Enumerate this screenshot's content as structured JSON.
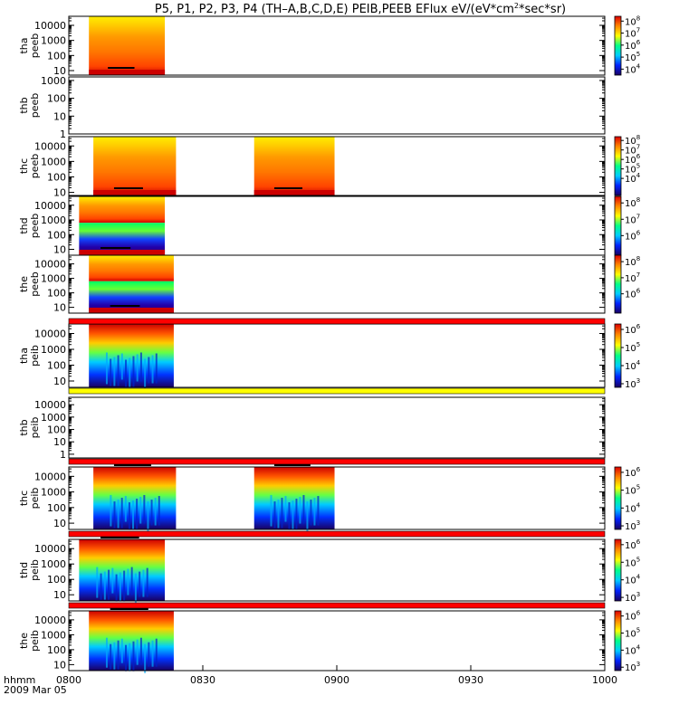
{
  "chart_data": {
    "type": "heatmap",
    "title": {
      "prefix": "P5, P1, P2, P3, P4 (TH–A,B,C,D,E) PEIB,PEEB EFlux eV/(eV*cm",
      "sup": "2",
      "suffix": "*sec*sr)"
    },
    "x_axis": {
      "label_line1": "hhmm",
      "label_line2": "2009 Mar 05",
      "range_minutes": [
        0,
        120
      ],
      "ticks": [
        {
          "label": "0800",
          "minute": 0
        },
        {
          "label": "0830",
          "minute": 30
        },
        {
          "label": "0900",
          "minute": 60
        },
        {
          "label": "0930",
          "minute": 90
        },
        {
          "label": "1000",
          "minute": 120
        }
      ]
    },
    "colormap": [
      "#1a0060",
      "#0022ff",
      "#00ccff",
      "#00ff88",
      "#ffff00",
      "#ff8800",
      "#dd0000"
    ],
    "panels": [
      {
        "probe": "tha",
        "instrument": "peeb",
        "y_ticks": [
          "10000",
          "1000",
          "100",
          "10"
        ],
        "yrange_log": [
          0.7,
          4.6
        ],
        "empty": false,
        "colorbar_ticks": [
          {
            "base": "10",
            "exp": "8",
            "v": 8
          },
          {
            "base": "10",
            "exp": "7",
            "v": 7
          },
          {
            "base": "10",
            "exp": "6",
            "v": 6
          },
          {
            "base": "10",
            "exp": "5",
            "v": 5
          },
          {
            "base": "10",
            "exp": "4",
            "v": 4
          }
        ],
        "colorbar_range": [
          3.5,
          8.4
        ],
        "intervals": [
          {
            "start": 4.5,
            "end": 21.5
          }
        ],
        "separator": null
      },
      {
        "probe": "thb",
        "instrument": "peeb",
        "y_ticks": [
          "1000",
          "100",
          "10",
          "1"
        ],
        "yrange_log": [
          0,
          3.2
        ],
        "empty": true,
        "colorbar_ticks": [],
        "colorbar_range": null,
        "intervals": [],
        "separator": null
      },
      {
        "probe": "thc",
        "instrument": "peeb",
        "y_ticks": [
          "10000",
          "1000",
          "100",
          "10"
        ],
        "yrange_log": [
          0.8,
          4.6
        ],
        "empty": false,
        "colorbar_ticks": [
          {
            "base": "10",
            "exp": "8",
            "v": 8
          },
          {
            "base": "10",
            "exp": "7",
            "v": 7
          },
          {
            "base": "10",
            "exp": "6",
            "v": 6
          },
          {
            "base": "10",
            "exp": "5",
            "v": 5
          },
          {
            "base": "10",
            "exp": "4",
            "v": 4
          }
        ],
        "colorbar_range": [
          2.2,
          8.4
        ],
        "intervals": [
          {
            "start": 5.5,
            "end": 24
          },
          {
            "start": 41.5,
            "end": 59.5
          }
        ],
        "separator": null
      },
      {
        "probe": "thd",
        "instrument": "peeb",
        "y_ticks": [
          "10000",
          "1000",
          "100",
          "10"
        ],
        "yrange_log": [
          0.6,
          4.6
        ],
        "empty": false,
        "colorbar_ticks": [
          {
            "base": "10",
            "exp": "8",
            "v": 8
          },
          {
            "base": "10",
            "exp": "7",
            "v": 7
          },
          {
            "base": "10",
            "exp": "6",
            "v": 6
          }
        ],
        "colorbar_range": [
          4.8,
          8.4
        ],
        "intervals": [
          {
            "start": 2.3,
            "end": 21.5
          }
        ],
        "separator": null
      },
      {
        "probe": "the",
        "instrument": "peeb",
        "y_ticks": [
          "10000",
          "1000",
          "100",
          "10"
        ],
        "yrange_log": [
          0.6,
          4.6
        ],
        "empty": false,
        "colorbar_ticks": [
          {
            "base": "10",
            "exp": "8",
            "v": 8
          },
          {
            "base": "10",
            "exp": "7",
            "v": 7
          },
          {
            "base": "10",
            "exp": "6",
            "v": 6
          }
        ],
        "colorbar_range": [
          4.8,
          8.4
        ],
        "intervals": [
          {
            "start": 4.5,
            "end": 23.5
          }
        ],
        "separator": "red"
      },
      {
        "probe": "tha",
        "instrument": "peib",
        "y_ticks": [
          "10000",
          "1000",
          "100",
          "10"
        ],
        "yrange_log": [
          0.6,
          4.6
        ],
        "empty": false,
        "colorbar_ticks": [
          {
            "base": "10",
            "exp": "6",
            "v": 6
          },
          {
            "base": "10",
            "exp": "5",
            "v": 5
          },
          {
            "base": "10",
            "exp": "4",
            "v": 4
          },
          {
            "base": "10",
            "exp": "3",
            "v": 3
          }
        ],
        "colorbar_range": [
          2.8,
          6.3
        ],
        "intervals": [
          {
            "start": 4.5,
            "end": 23.5
          }
        ],
        "separator": "yellow"
      },
      {
        "probe": "thb",
        "instrument": "peib",
        "y_ticks": [
          "10000",
          "1000",
          "100",
          "10",
          "1"
        ],
        "yrange_log": [
          -0.3,
          4.6
        ],
        "empty": true,
        "colorbar_ticks": [],
        "colorbar_range": null,
        "intervals": [],
        "separator": "red"
      },
      {
        "probe": "thc",
        "instrument": "peib",
        "y_ticks": [
          "10000",
          "1000",
          "100",
          "10"
        ],
        "yrange_log": [
          0.6,
          4.6
        ],
        "empty": false,
        "colorbar_ticks": [
          {
            "base": "10",
            "exp": "6",
            "v": 6
          },
          {
            "base": "10",
            "exp": "5",
            "v": 5
          },
          {
            "base": "10",
            "exp": "4",
            "v": 4
          },
          {
            "base": "10",
            "exp": "3",
            "v": 3
          }
        ],
        "colorbar_range": [
          2.8,
          6.3
        ],
        "intervals": [
          {
            "start": 5.5,
            "end": 24
          },
          {
            "start": 41.5,
            "end": 59.5
          }
        ],
        "separator": "red"
      },
      {
        "probe": "thd",
        "instrument": "peib",
        "y_ticks": [
          "10000",
          "1000",
          "100",
          "10"
        ],
        "yrange_log": [
          0.6,
          4.6
        ],
        "empty": false,
        "colorbar_ticks": [
          {
            "base": "10",
            "exp": "6",
            "v": 6
          },
          {
            "base": "10",
            "exp": "5",
            "v": 5
          },
          {
            "base": "10",
            "exp": "4",
            "v": 4
          },
          {
            "base": "10",
            "exp": "3",
            "v": 3
          }
        ],
        "colorbar_range": [
          2.8,
          6.3
        ],
        "intervals": [
          {
            "start": 2.3,
            "end": 21.5
          }
        ],
        "separator": "red"
      },
      {
        "probe": "the",
        "instrument": "peib",
        "y_ticks": [
          "10000",
          "1000",
          "100",
          "10"
        ],
        "yrange_log": [
          0.6,
          4.6
        ],
        "empty": false,
        "colorbar_ticks": [
          {
            "base": "10",
            "exp": "6",
            "v": 6
          },
          {
            "base": "10",
            "exp": "5",
            "v": 5
          },
          {
            "base": "10",
            "exp": "4",
            "v": 4
          },
          {
            "base": "10",
            "exp": "3",
            "v": 3
          }
        ],
        "colorbar_range": [
          2.8,
          6.3
        ],
        "intervals": [
          {
            "start": 4.5,
            "end": 23.5
          }
        ],
        "separator": null
      }
    ]
  }
}
